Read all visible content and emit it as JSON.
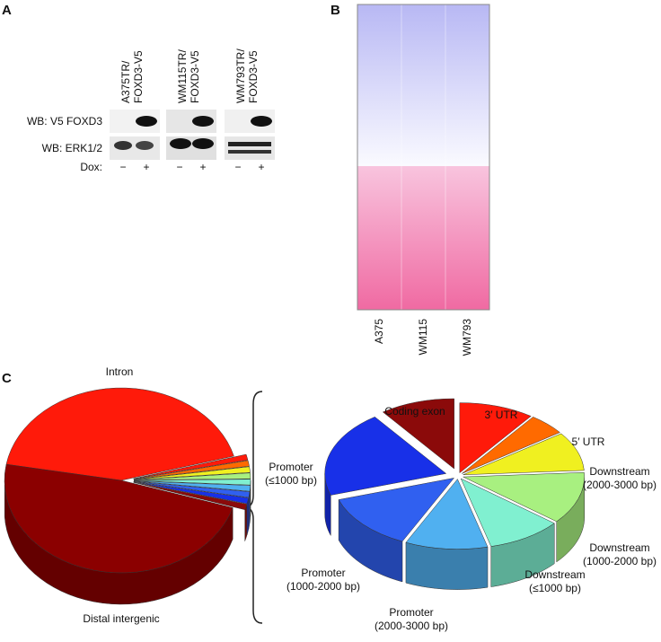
{
  "panels": {
    "a": "A",
    "b": "B",
    "c": "C"
  },
  "blot": {
    "columns": [
      [
        "A375TR/",
        "FOXD3-V5"
      ],
      [
        "WM115TR/",
        "FOXD3-V5"
      ],
      [
        "WM793TR/",
        "FOXD3-V5"
      ]
    ],
    "rows": [
      "WB: V5 FOXD3",
      "WB: ERK1/2"
    ],
    "dox_label": "Dox:",
    "dox": [
      "−",
      "+"
    ]
  },
  "heatmap": {
    "columns": [
      "A375",
      "WM115",
      "WM793"
    ]
  },
  "chart_data": [
    {
      "type": "pie",
      "categories": [
        "Intron",
        null,
        null,
        null,
        null,
        null,
        null,
        null,
        null,
        null,
        "Distal intergenic"
      ],
      "values": [
        43,
        1,
        1,
        1,
        1,
        1,
        1,
        1,
        1,
        1,
        48
      ],
      "colors": [
        "#ff1a0a",
        "#ff1a0a",
        "#ff6a00",
        "#f0f020",
        "#a8f080",
        "#80f0d0",
        "#50b0f0",
        "#3060f0",
        "#1830e8",
        "#8b0a0a",
        "#8b0000"
      ]
    },
    {
      "type": "pie",
      "categories": [
        "3′ UTR",
        "5′ UTR",
        "Downstream (2000-3000 bp)",
        "Downstream (1000-2000 bp)",
        "Downstream (≤1000 bp)",
        "Promoter (2000-3000 bp)",
        "Promoter (1000-2000 bp)",
        "Promoter (≤1000 bp)",
        "Coding exon"
      ],
      "values": [
        10,
        5,
        9,
        12,
        10,
        11,
        13,
        20,
        10
      ],
      "colors": [
        "#ff1a0a",
        "#ff6a00",
        "#f0f020",
        "#a8f080",
        "#80f0d0",
        "#50b0f0",
        "#3060f0",
        "#1830e8",
        "#8b0a0a"
      ]
    }
  ]
}
